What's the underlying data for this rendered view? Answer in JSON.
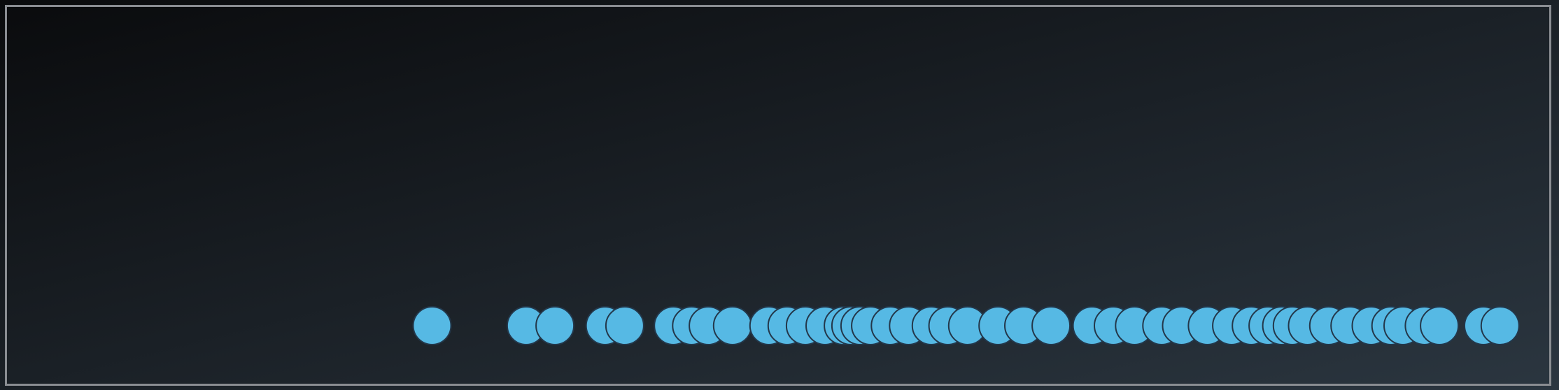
{
  "chart_data": {
    "type": "scatter",
    "title": "",
    "xlabel": "",
    "ylabel": "",
    "grid": false,
    "legend": "none",
    "xlim": [
      0,
      1
    ],
    "marker_color": "#56b9e4",
    "marker_edge_color": "#23374a",
    "background_gradient": [
      "#0a0b0d",
      "#2b3640"
    ],
    "series": [
      {
        "x": [
          0.271,
          0.333,
          0.352,
          0.385,
          0.398,
          0.43,
          0.442,
          0.453,
          0.469,
          0.493,
          0.505,
          0.517,
          0.53,
          0.542,
          0.547,
          0.553,
          0.56,
          0.573,
          0.585,
          0.6,
          0.611,
          0.624,
          0.644,
          0.661,
          0.679,
          0.706,
          0.72,
          0.734,
          0.752,
          0.765,
          0.782,
          0.798,
          0.811,
          0.822,
          0.831,
          0.838,
          0.848,
          0.862,
          0.876,
          0.89,
          0.903,
          0.911,
          0.925,
          0.935,
          0.964,
          0.975
        ],
        "y": [
          0,
          0,
          0,
          0,
          0,
          0,
          0,
          0,
          0,
          0,
          0,
          0,
          0,
          0,
          0,
          0,
          0,
          0,
          0,
          0,
          0,
          0,
          0,
          0,
          0,
          0,
          0,
          0,
          0,
          0,
          0,
          0,
          0,
          0,
          0,
          0,
          0,
          0,
          0,
          0,
          0,
          0,
          0,
          0,
          0,
          0
        ]
      }
    ]
  }
}
